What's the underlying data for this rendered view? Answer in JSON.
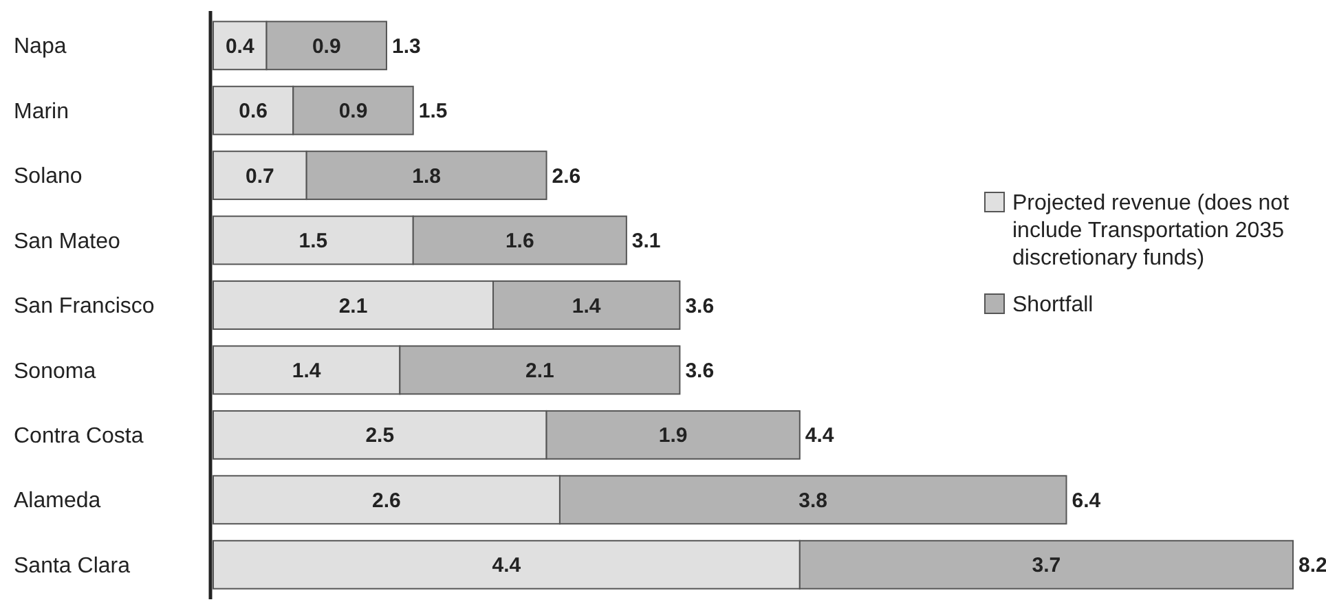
{
  "chart_data": {
    "type": "bar",
    "orientation": "horizontal",
    "stacked": true,
    "categories": [
      "Napa",
      "Marin",
      "Solano",
      "San Mateo",
      "San Francisco",
      "Sonoma",
      "Contra Costa",
      "Alameda",
      "Santa Clara"
    ],
    "series": [
      {
        "name": "Projected revenue (does not include Transportation 2035 discretionary funds)",
        "color": "#e0e0e0",
        "values": [
          0.4,
          0.6,
          0.7,
          1.5,
          2.1,
          1.4,
          2.5,
          2.6,
          4.4
        ]
      },
      {
        "name": "Shortfall",
        "color": "#b3b3b3",
        "values": [
          0.9,
          0.9,
          1.8,
          1.6,
          1.4,
          2.1,
          1.9,
          3.8,
          3.7
        ]
      }
    ],
    "data_labels": true,
    "totals": [
      "1.3",
      "1.5",
      "2.6",
      "3.1",
      "3.6",
      "3.6",
      "4.4",
      "6.4",
      "8.2"
    ],
    "legend": "right"
  }
}
